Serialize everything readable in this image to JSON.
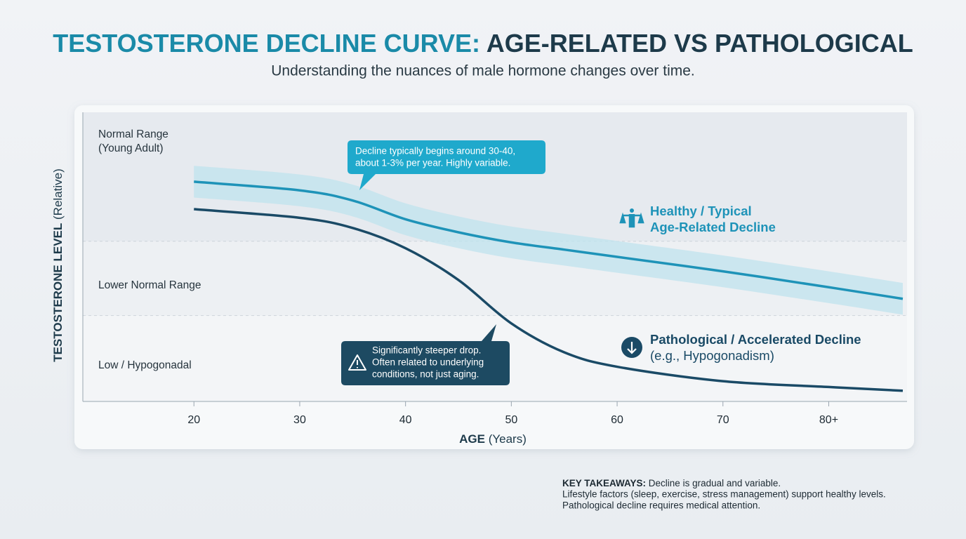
{
  "chart_data": {
    "type": "line",
    "title": {
      "part1": "TESTOSTERONE DECLINE CURVE:",
      "part2": "AGE-RELATED VS PATHOLOGICAL"
    },
    "subtitle": "Understanding the nuances of male hormone changes over time.",
    "y_label": {
      "bold": "TESTOSTERONE LEVEL",
      "rest": "(Relative)"
    },
    "x_label": {
      "bold": "AGE",
      "rest": "(Years)"
    },
    "xlim": [
      9.5,
      87.4
    ],
    "ylim": [
      0,
      100
    ],
    "xticks": [
      20,
      30,
      40,
      50,
      60,
      70,
      {
        "value": 80,
        "label": "80+"
      }
    ],
    "bands": [
      {
        "label": [
          "Normal Range",
          "(Young Adult)"
        ],
        "from": 55.3,
        "to": 100,
        "color": "#e6eaef"
      },
      {
        "label": [
          "Lower Normal Range"
        ],
        "from": 29.6,
        "to": 55.3,
        "color": "#edf0f3"
      },
      {
        "label": [
          "Low / Hypogonadal"
        ],
        "from": 0,
        "to": 29.6,
        "color": "#f3f5f7"
      }
    ],
    "x": [
      20,
      30,
      35,
      40,
      45,
      50,
      55,
      60,
      70,
      80,
      87
    ],
    "series": [
      {
        "name": [
          "Healthy / Typical",
          "Age-Related Decline"
        ],
        "color": "#1e93b8",
        "band_color": "#bfe3ee",
        "spread": 5.5,
        "values": [
          76,
          73,
          69.5,
          63,
          58.5,
          55,
          52.5,
          50,
          45,
          39.5,
          35.5
        ]
      },
      {
        "name": [
          "Pathological / Accelerated Decline"
        ],
        "note": "(e.g., Hypogonadism)",
        "color": "#1a4a66",
        "values": [
          66.5,
          63.5,
          60,
          53,
          42,
          27,
          17,
          12,
          7,
          5,
          3.7
        ]
      }
    ],
    "callouts": [
      {
        "lines": [
          "Decline typically begins around 30-40,",
          "about 1-3% per year. Highly variable."
        ],
        "color": "#1fa9cc"
      },
      {
        "lines": [
          "Significantly steeper drop.",
          "Often related to underlying",
          "conditions, not just aging."
        ],
        "color": "#1d4a62"
      }
    ],
    "takeaways": {
      "bold": "KEY TAKEAWAYS:",
      "lines": [
        "Decline is gradual and variable.",
        "Lifestyle factors (sleep, exercise, stress management) support healthy levels.",
        "Pathological decline requires medical attention."
      ]
    }
  }
}
